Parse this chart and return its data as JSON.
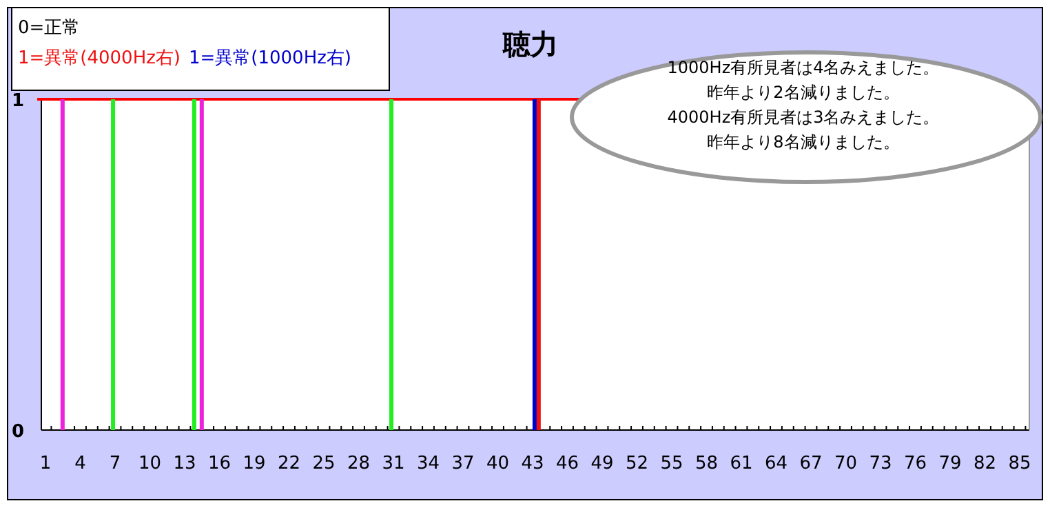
{
  "chart_data": {
    "type": "bar",
    "title": "聴力",
    "categories": [
      "1",
      null,
      null,
      "4",
      null,
      null,
      "7",
      null,
      null,
      "10",
      null,
      null,
      "13",
      null,
      null,
      "16",
      null,
      null,
      "19",
      null,
      null,
      "22",
      null,
      null,
      "25",
      null,
      null,
      "28",
      null,
      null,
      "31",
      null,
      null,
      "34",
      null,
      null,
      "37",
      null,
      null,
      "40",
      null,
      null,
      "43",
      null,
      null,
      "46",
      null,
      null,
      "49",
      null,
      null,
      "52",
      null,
      null,
      "55",
      null,
      null,
      "58",
      null,
      null,
      "61",
      null,
      null,
      "64",
      null,
      null,
      "67",
      null,
      null,
      "70",
      null,
      null,
      "73",
      null,
      null,
      "76",
      null,
      null,
      "79",
      null,
      null,
      "82",
      null,
      null,
      "85"
    ],
    "series": [
      {
        "color": "#ee22dd",
        "values": [
          0,
          0,
          1,
          0,
          0,
          0,
          0,
          0,
          0,
          0,
          0,
          0,
          0,
          0,
          1,
          0,
          0,
          0,
          0,
          0,
          0,
          0,
          0,
          0,
          0,
          0,
          0,
          0,
          0,
          0,
          0,
          0,
          0,
          0,
          0,
          0,
          0,
          0,
          0,
          0,
          0,
          0,
          0,
          0,
          0,
          0,
          0,
          0,
          0,
          0,
          0,
          0,
          0,
          0,
          0,
          0,
          0,
          0,
          0,
          0,
          0,
          0,
          0,
          0,
          0,
          0,
          0,
          0,
          0,
          0,
          0,
          0,
          0,
          0,
          0,
          0,
          0,
          0,
          0,
          0,
          0,
          0,
          0,
          0,
          0
        ]
      },
      {
        "color": "#22ee22",
        "values": [
          0,
          0,
          0,
          0,
          0,
          0,
          1,
          0,
          0,
          0,
          0,
          0,
          0,
          1,
          0,
          0,
          0,
          0,
          0,
          0,
          0,
          0,
          0,
          0,
          0,
          0,
          0,
          0,
          0,
          0,
          1,
          0,
          0,
          0,
          0,
          0,
          0,
          0,
          0,
          0,
          0,
          0,
          0,
          0,
          0,
          0,
          0,
          0,
          0,
          0,
          0,
          0,
          0,
          0,
          0,
          0,
          0,
          0,
          0,
          0,
          0,
          0,
          0,
          0,
          0,
          0,
          0,
          0,
          0,
          0,
          0,
          0,
          0,
          0,
          0,
          0,
          0,
          0,
          0,
          0,
          0,
          0,
          0,
          0,
          0
        ]
      },
      {
        "name": "1=異常(1000Hz右)",
        "color": "#0000cc",
        "values": [
          0,
          0,
          0,
          0,
          0,
          0,
          0,
          0,
          0,
          0,
          0,
          0,
          0,
          0,
          0,
          0,
          0,
          0,
          0,
          0,
          0,
          0,
          0,
          0,
          0,
          0,
          0,
          0,
          0,
          0,
          0,
          0,
          0,
          0,
          0,
          0,
          0,
          0,
          0,
          0,
          0,
          0,
          1,
          0,
          0,
          0,
          0,
          0,
          0,
          0,
          0,
          0,
          0,
          0,
          0,
          0,
          0,
          0,
          0,
          0,
          0,
          0,
          0,
          0,
          0,
          0,
          0,
          0,
          0,
          0,
          0,
          0,
          0,
          0,
          0,
          0,
          0,
          0,
          0,
          0,
          0,
          0,
          0,
          0,
          0
        ]
      },
      {
        "name": "1=異常(4000Hz右)",
        "color": "#ee1111",
        "values": [
          0,
          0,
          0,
          0,
          0,
          0,
          0,
          0,
          0,
          0,
          0,
          0,
          0,
          0,
          0,
          0,
          0,
          0,
          0,
          0,
          0,
          0,
          0,
          0,
          0,
          0,
          0,
          0,
          0,
          0,
          0,
          0,
          0,
          0,
          0,
          0,
          0,
          0,
          0,
          0,
          0,
          0,
          1,
          0,
          0,
          0,
          0,
          0,
          0,
          0,
          0,
          0,
          0,
          0,
          0,
          0,
          0,
          0,
          0,
          0,
          0,
          0,
          0,
          0,
          0,
          0,
          0,
          0,
          0,
          0,
          0,
          0,
          0,
          0,
          0,
          0,
          0,
          0,
          0,
          0,
          0,
          0,
          0,
          0,
          0
        ]
      }
    ],
    "ylim": [
      0,
      1
    ],
    "yticks": [
      0,
      1
    ],
    "ref_lines": [
      {
        "axis": "y",
        "value": 1,
        "color": "#ff0000"
      }
    ],
    "legend": "top left",
    "annotations": [
      "0=正常",
      "1000Hz有所見者は4名みえました。",
      "昨年より2名減りました。",
      "4000Hz有所見者は3名みえました。",
      "昨年より8名減りました。"
    ]
  }
}
